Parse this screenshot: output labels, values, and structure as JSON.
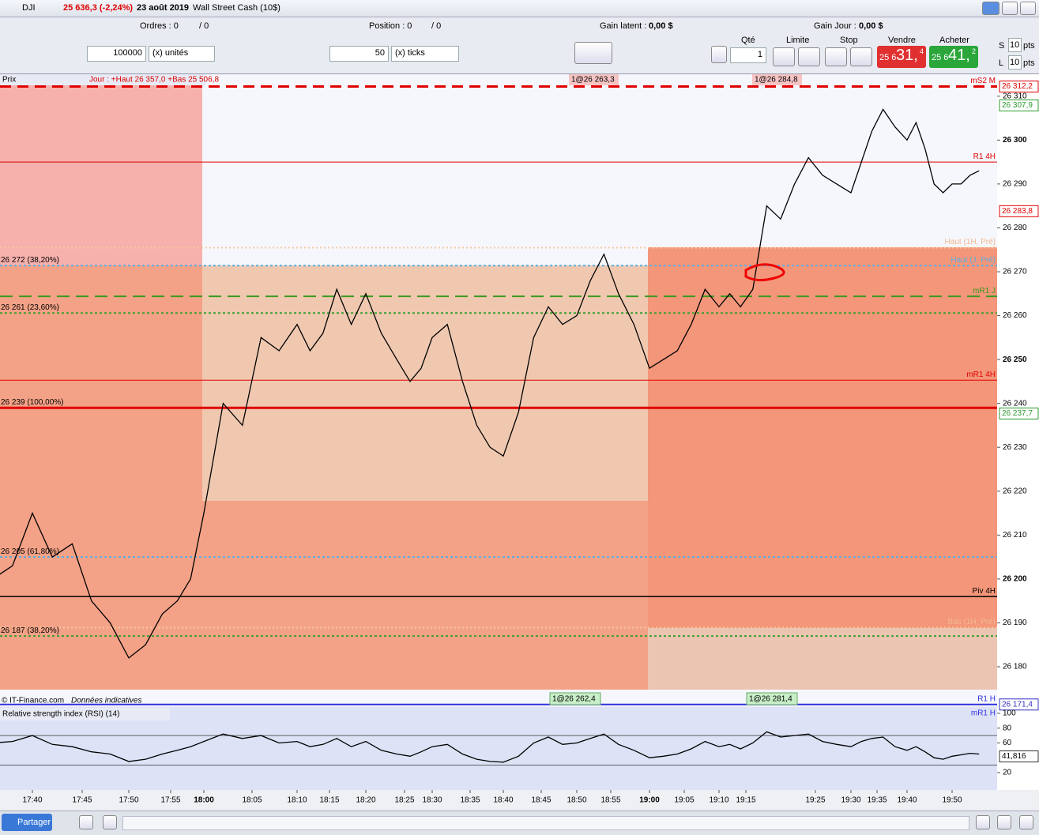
{
  "toolbar": {
    "symbol": "DJI",
    "price_change": "25 636,3 (-2,24%)",
    "date": "23 août 2019",
    "instrument": "Wall Street Cash (10$)"
  },
  "account": {
    "orders": "Ordres : 0",
    "orders_total": "/ 0",
    "position": "Position : 0",
    "position_total": "/ 0",
    "latent_label": "Gain latent :",
    "latent": "0,00 $",
    "day_label": "Gain Jour :",
    "day": "0,00 $"
  },
  "order_entry": {
    "qty_units": "100000",
    "units": "(x) unités",
    "qty_ticks": "50",
    "ticks": "(x) ticks"
  },
  "trade_panel": {
    "qty_label": "Qté",
    "qty": "1",
    "limit": "Limite",
    "stop": "Stop",
    "sell": "Vendre",
    "buy": "Acheter",
    "sell_small": "25 6",
    "sell_big": "31,",
    "sell_sup": "4",
    "buy_small": "25 6",
    "buy_big": "41,",
    "buy_sup": "2",
    "s": "S",
    "l": "L",
    "s_pts": "10",
    "l_pts": "10",
    "pts_s": "pts",
    "pts_l": "pts"
  },
  "chart_data": [
    {
      "type": "line",
      "title": "Prix",
      "header": "Jour : +Haut 26 357,0 +Bas 25 506,8",
      "source": "© IT-Finance.com",
      "note": "Données indicatives",
      "annotations": [
        "1@26 263,3",
        "1@26 284,8",
        "1@26 262,4",
        "1@26 281,4"
      ],
      "x": [
        "17:36",
        "17:38",
        "17:40",
        "17:42",
        "17:44",
        "17:46",
        "17:48",
        "17:50",
        "17:52",
        "17:54",
        "17:56",
        "17:58",
        "18:00",
        "18:02",
        "18:04",
        "18:06",
        "18:08",
        "18:10",
        "18:12",
        "18:14",
        "18:16",
        "18:18",
        "18:20",
        "18:22",
        "18:24",
        "18:26",
        "18:28",
        "18:30",
        "18:32",
        "18:34",
        "18:36",
        "18:38",
        "18:40",
        "18:42",
        "18:44",
        "18:46",
        "18:48",
        "18:50",
        "18:52",
        "18:54",
        "18:56",
        "18:58",
        "19:00",
        "19:02",
        "19:04",
        "19:06",
        "19:08",
        "19:10",
        "19:12",
        "19:14",
        "19:16",
        "19:18",
        "19:20",
        "19:22",
        "19:24",
        "19:26",
        "19:28",
        "19:30",
        "19:32",
        "19:34",
        "19:36",
        "19:38",
        "19:40",
        "19:42",
        "19:44",
        "19:46",
        "19:48",
        "19:50",
        "19:52",
        "19:54",
        "19:56"
      ],
      "values": [
        26200,
        26203,
        26215,
        26205,
        26208,
        26195,
        26190,
        26182,
        26185,
        26192,
        26195,
        26200,
        26215,
        26240,
        26235,
        26255,
        26252,
        26258,
        26252,
        26256,
        26266,
        26258,
        26265,
        26256,
        26250,
        26245,
        26248,
        26255,
        26258,
        26245,
        26235,
        26230,
        26228,
        26238,
        26255,
        26262,
        26258,
        26260,
        26268,
        26274,
        26265,
        26258,
        26248,
        26250,
        26252,
        26258,
        26266,
        26262,
        26265,
        26262,
        26266,
        26285,
        26282,
        26290,
        26296,
        26292,
        26290,
        26288,
        26295,
        26302,
        26307,
        26303,
        26300,
        26304,
        26298,
        26290,
        26288,
        26290,
        26290,
        26292,
        26293
      ],
      "color": "#000000",
      "ylim": [
        26171,
        26315
      ],
      "yticks": [
        {
          "value": 26180,
          "label": "26 180"
        },
        {
          "value": 26190,
          "label": "26 190"
        },
        {
          "value": 26200,
          "label": "26 200"
        },
        {
          "value": 26210,
          "label": "26 210"
        },
        {
          "value": 26220,
          "label": "26 220"
        },
        {
          "value": 26230,
          "label": "26 230"
        },
        {
          "value": 26240,
          "label": "26 240"
        },
        {
          "value": 26250,
          "label": "26 250"
        },
        {
          "value": 26260,
          "label": "26 260"
        },
        {
          "value": 26270,
          "label": "26 270"
        },
        {
          "value": 26280,
          "label": "26 280"
        },
        {
          "value": 26290,
          "label": "26 290"
        },
        {
          "value": 26300,
          "label": "26 300"
        },
        {
          "value": 26310,
          "label": "26 310"
        }
      ],
      "xticks": [
        "17:40",
        "17:45",
        "17:50",
        "17:55",
        "18:00",
        "18:05",
        "18:10",
        "18:15",
        "18:20",
        "18:25",
        "18:30",
        "18:35",
        "18:40",
        "18:45",
        "18:50",
        "18:55",
        "19:00",
        "19:05",
        "19:10",
        "19:15",
        "19:25",
        "19:30",
        "19:35",
        "19:40",
        "19:50"
      ],
      "levels": [
        {
          "value": 26312.2,
          "tag": "mS2 M",
          "color": "#e00000",
          "dash": "14 8",
          "width": 3
        },
        {
          "value": 26295,
          "tag": "R1 4H",
          "color": "#e00000",
          "width": 1
        },
        {
          "value": 26275.5,
          "tag": "Haut (1H, Pré)",
          "color": "#f5c9a0",
          "dash": "2 3",
          "width": 2
        },
        {
          "value": 26271.4,
          "label": "26 272 (38,20%)",
          "tag": "Haut (J. Pré)",
          "color": "#5aaee0",
          "dash": "3 3",
          "width": 2
        },
        {
          "value": 26264.4,
          "tag": "mR1 J",
          "color": "#3a9a20",
          "dash": "16 8",
          "width": 2
        },
        {
          "value": 26260.6,
          "label": "26 261 (23,60%)",
          "color": "#3aa030",
          "dash": "3 3",
          "width": 2
        },
        {
          "value": 26245.3,
          "tag": "mR1 4H",
          "color": "#e00000",
          "width": 1
        },
        {
          "value": 26239,
          "label": "26 239 (100,00%)",
          "color": "#e00000",
          "width": 3
        },
        {
          "value": 26205,
          "label": "26 205 (61,80%)",
          "color": "#5aaee0",
          "dash": "3 3",
          "width": 2
        },
        {
          "value": 26196,
          "tag": "Piv 4H",
          "color": "#000000",
          "width": 1.5
        },
        {
          "value": 26188.9,
          "tag": "Bas (1H, Pré)",
          "color": "#f5c9a0",
          "dash": "2 3",
          "width": 2
        },
        {
          "value": 26187,
          "label": "26 187 (38,20%)",
          "color": "#3aa030",
          "dash": "3 3",
          "width": 2
        },
        {
          "value": 26171.4,
          "tag": "R1 H",
          "tag2": "mR1 H",
          "color": "#3030e0",
          "width": 2
        }
      ],
      "price_tags": [
        {
          "value": 26312.2,
          "label": "26 312,2",
          "color": "#e00000"
        },
        {
          "value": 26307.9,
          "label": "26 307,9",
          "color": "#2a9a2a"
        },
        {
          "value": 26283.8,
          "label": "26 283,8",
          "color": "#e00000"
        },
        {
          "value": 26237.7,
          "label": "26 237,7",
          "color": "#2a9a2a"
        },
        {
          "value": 26171.4,
          "label": "26 171,4",
          "color": "#3030c0"
        }
      ]
    },
    {
      "type": "line",
      "title": "Relative strength index (RSI) (14)",
      "values": [
        60,
        62,
        70,
        58,
        55,
        48,
        45,
        35,
        38,
        45,
        50,
        55,
        62,
        72,
        66,
        70,
        60,
        62,
        55,
        58,
        66,
        55,
        62,
        50,
        45,
        42,
        48,
        55,
        58,
        45,
        38,
        35,
        34,
        42,
        60,
        68,
        58,
        60,
        66,
        72,
        58,
        50,
        40,
        42,
        45,
        52,
        62,
        55,
        58,
        52,
        60,
        75,
        68,
        70,
        72,
        62,
        58,
        55,
        62,
        66,
        68,
        55,
        50,
        55,
        48,
        40,
        38,
        42,
        44,
        46,
        45
      ],
      "color": "#000000",
      "ylim": [
        -3.5,
        108.5
      ],
      "yticks": [
        20,
        60,
        80,
        100
      ],
      "levels": [
        30,
        70
      ],
      "current": {
        "value": 41.816,
        "label": "41,816"
      }
    }
  ],
  "footer": {
    "share": "Partager"
  }
}
